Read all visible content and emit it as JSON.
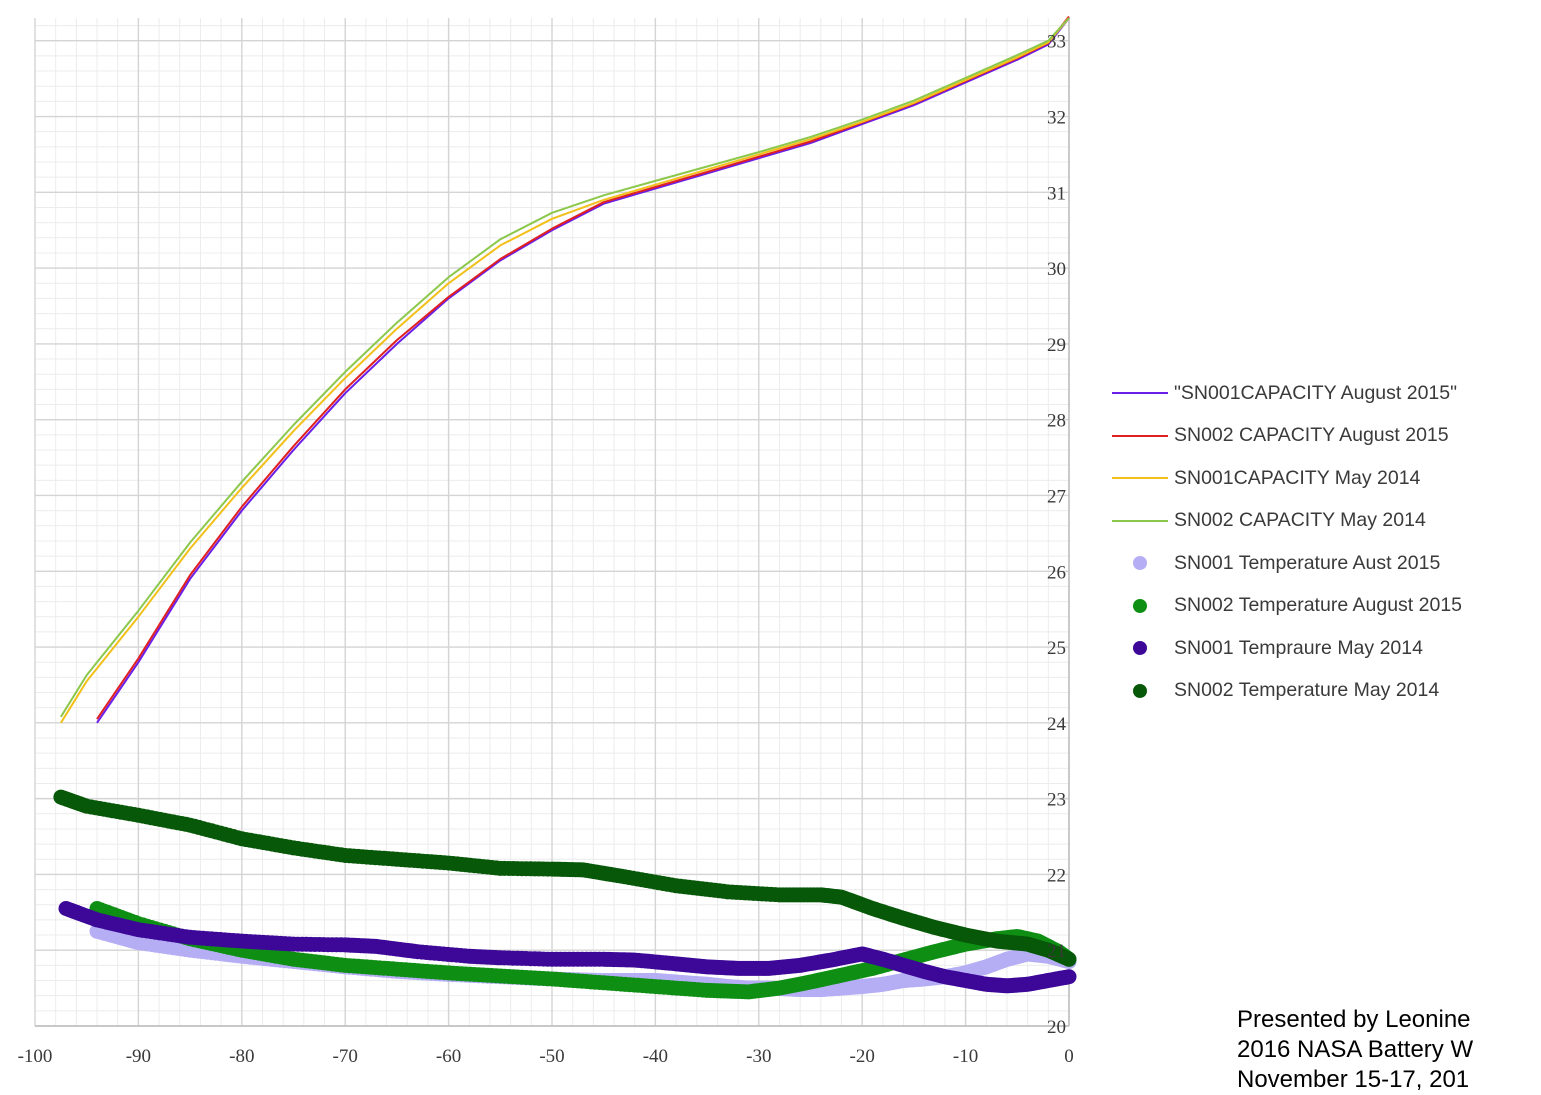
{
  "chart_data": {
    "type": "line",
    "title": "",
    "xlabel": "",
    "ylabel": "",
    "xlim": [
      -100,
      0
    ],
    "ylim": [
      20,
      33.3
    ],
    "x_ticks": [
      -100,
      -90,
      -80,
      -70,
      -60,
      -50,
      -40,
      -30,
      -20,
      -10,
      0
    ],
    "y_ticks": [
      20,
      21,
      22,
      23,
      24,
      25,
      26,
      27,
      28,
      29,
      30,
      31,
      32,
      33
    ],
    "y_axis_position": "right",
    "grid": true,
    "legend_position": "right",
    "series": [
      {
        "name": "\"SN001CAPACITY  August 2015\"",
        "kind": "line",
        "color": "#6a1ee8",
        "x": [
          -94,
          -90,
          -85,
          -80,
          -75,
          -70,
          -65,
          -60,
          -55,
          -50,
          -45,
          -40,
          -35,
          -30,
          -25,
          -20,
          -15,
          -10,
          -5,
          -2,
          0
        ],
        "y": [
          24.0,
          24.8,
          25.9,
          26.8,
          27.6,
          28.35,
          29.0,
          29.6,
          30.1,
          30.5,
          30.85,
          31.05,
          31.25,
          31.45,
          31.65,
          31.9,
          32.15,
          32.45,
          32.75,
          32.95,
          33.3
        ]
      },
      {
        "name": "SN002 CAPACITY  August 2015",
        "kind": "line",
        "color": "#e02020",
        "x": [
          -94,
          -90,
          -85,
          -80,
          -75,
          -70,
          -65,
          -60,
          -55,
          -50,
          -45,
          -40,
          -35,
          -30,
          -25,
          -20,
          -15,
          -10,
          -5,
          -2,
          0
        ],
        "y": [
          24.05,
          24.85,
          25.95,
          26.85,
          27.65,
          28.4,
          29.05,
          29.62,
          30.12,
          30.52,
          30.87,
          31.07,
          31.27,
          31.47,
          31.67,
          31.92,
          32.17,
          32.47,
          32.77,
          32.97,
          33.32
        ]
      },
      {
        "name": "SN001CAPACITY  May 2014",
        "kind": "line",
        "color": "#f2c019",
        "x": [
          -97.5,
          -95,
          -90,
          -85,
          -80,
          -75,
          -70,
          -65,
          -60,
          -55,
          -50,
          -45,
          -40,
          -35,
          -30,
          -25,
          -20,
          -15,
          -10,
          -5,
          -2,
          0
        ],
        "y": [
          24.0,
          24.55,
          25.4,
          26.3,
          27.1,
          27.85,
          28.55,
          29.2,
          29.8,
          30.3,
          30.65,
          30.9,
          31.1,
          31.3,
          31.5,
          31.7,
          31.93,
          32.18,
          32.48,
          32.78,
          32.98,
          33.3
        ]
      },
      {
        "name": "SN002 CAPACITY May 2014",
        "kind": "line",
        "color": "#8cc84b",
        "x": [
          -97.5,
          -95,
          -90,
          -85,
          -80,
          -75,
          -70,
          -65,
          -60,
          -55,
          -50,
          -45,
          -40,
          -35,
          -30,
          -25,
          -20,
          -15,
          -10,
          -5,
          -2,
          0
        ],
        "y": [
          24.08,
          24.63,
          25.48,
          26.38,
          27.18,
          27.93,
          28.63,
          29.28,
          29.88,
          30.38,
          30.73,
          30.96,
          31.15,
          31.34,
          31.53,
          31.73,
          31.96,
          32.21,
          32.51,
          32.81,
          33.0,
          33.3
        ]
      },
      {
        "name": "SN001 Temperature Aust 2015",
        "kind": "scatter",
        "color": "#b5aef5",
        "x": [
          -94,
          -90,
          -85,
          -80,
          -75,
          -70,
          -65,
          -60,
          -55,
          -50,
          -45,
          -42,
          -40,
          -38,
          -35,
          -33,
          -31,
          -29,
          -26,
          -24,
          -22,
          -20,
          -18,
          -16,
          -14,
          -12,
          -10,
          -8,
          -6,
          -4,
          -2,
          0
        ],
        "y": [
          21.25,
          21.1,
          21.0,
          20.92,
          20.85,
          20.78,
          20.72,
          20.68,
          20.65,
          20.62,
          20.6,
          20.6,
          20.6,
          20.58,
          20.55,
          20.52,
          20.5,
          20.5,
          20.48,
          20.48,
          20.5,
          20.52,
          20.55,
          20.6,
          20.62,
          20.65,
          20.7,
          20.78,
          20.88,
          20.95,
          20.92,
          20.85
        ]
      },
      {
        "name": "SN002 Temperature August 2015",
        "kind": "scatter",
        "color": "#0e8f14",
        "x": [
          -94,
          -90,
          -85,
          -80,
          -75,
          -70,
          -65,
          -60,
          -55,
          -50,
          -45,
          -40,
          -35,
          -31,
          -28,
          -25,
          -22,
          -19,
          -16,
          -13,
          -10,
          -7,
          -5,
          -3,
          -1,
          0
        ],
        "y": [
          21.55,
          21.35,
          21.15,
          21.0,
          20.88,
          20.8,
          20.75,
          20.7,
          20.66,
          20.62,
          20.57,
          20.52,
          20.47,
          20.45,
          20.5,
          20.58,
          20.67,
          20.76,
          20.87,
          20.98,
          21.08,
          21.15,
          21.18,
          21.12,
          20.98,
          20.88
        ]
      },
      {
        "name": "SN001 Tempraure May 2014",
        "kind": "scatter",
        "color": "#3d0898",
        "x": [
          -97,
          -94,
          -90,
          -85,
          -80,
          -75,
          -70,
          -67,
          -63,
          -58,
          -55,
          -50,
          -45,
          -42,
          -38,
          -35,
          -32,
          -29,
          -26,
          -23,
          -20,
          -18,
          -16,
          -14,
          -12,
          -10,
          -8,
          -6,
          -4,
          -2,
          0
        ],
        "y": [
          21.55,
          21.4,
          21.27,
          21.17,
          21.12,
          21.08,
          21.07,
          21.05,
          20.98,
          20.92,
          20.9,
          20.88,
          20.88,
          20.87,
          20.82,
          20.78,
          20.76,
          20.76,
          20.8,
          20.87,
          20.95,
          20.88,
          20.8,
          20.72,
          20.65,
          20.6,
          20.55,
          20.53,
          20.55,
          20.6,
          20.65
        ]
      },
      {
        "name": "SN002 Temperature May 2014",
        "kind": "scatter",
        "color": "#075808",
        "x": [
          -97.5,
          -95,
          -90,
          -85,
          -80,
          -75,
          -70,
          -65,
          -60,
          -55,
          -50,
          -47,
          -43,
          -38,
          -33,
          -28,
          -24,
          -22,
          -19,
          -16,
          -13,
          -10,
          -7,
          -4,
          -2,
          0
        ],
        "y": [
          23.02,
          22.9,
          22.78,
          22.65,
          22.47,
          22.35,
          22.25,
          22.2,
          22.15,
          22.08,
          22.07,
          22.06,
          21.97,
          21.85,
          21.77,
          21.73,
          21.73,
          21.7,
          21.55,
          21.42,
          21.3,
          21.2,
          21.12,
          21.08,
          21.0,
          20.88
        ]
      }
    ]
  },
  "credit": {
    "line1": "Presented by Leonine",
    "line2": "2016 NASA Battery W",
    "line3": "November 15-17, 201"
  }
}
